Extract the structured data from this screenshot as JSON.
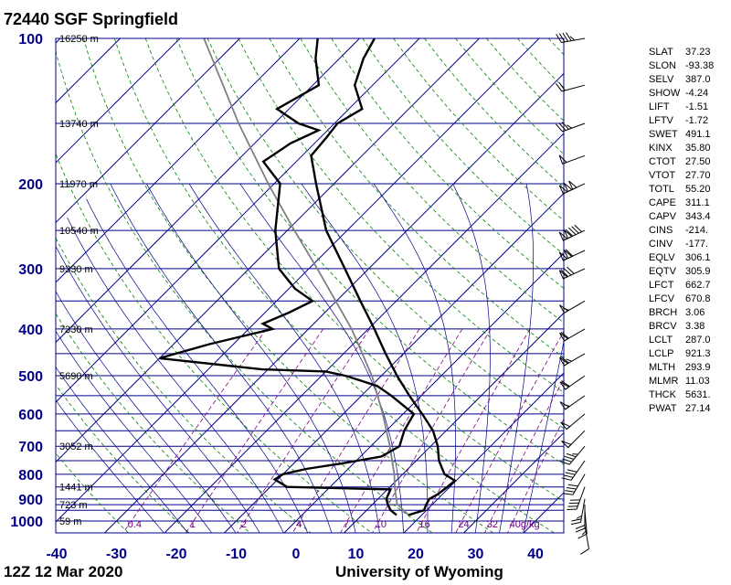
{
  "title": "72440 SGF Springfield",
  "footer": {
    "left": "12Z 12 Mar 2020",
    "right": "University of Wyoming"
  },
  "colors": {
    "pressure_label": "#00008b",
    "isobar": "#00008b",
    "isotherm": "#00008b",
    "dry_adiabat": "#008000",
    "moist_adiabat": "#00008b",
    "mixing_ratio": "#800080",
    "profile": "#000000",
    "parcel": "#808080"
  },
  "chart_data": {
    "type": "skewt",
    "pressure_labels": [
      "100",
      "200",
      "300",
      "400",
      "500",
      "600",
      "700",
      "800",
      "900",
      "1000"
    ],
    "pressure_levels": [
      100,
      150,
      200,
      250,
      300,
      350,
      400,
      450,
      500,
      550,
      600,
      650,
      700,
      750,
      800,
      850,
      900,
      925,
      950,
      1000
    ],
    "temperature_labels": [
      "-40",
      "-30",
      "-20",
      "-10",
      "0",
      "10",
      "20",
      "30",
      "40"
    ],
    "temperature_values": [
      -40,
      -30,
      -20,
      -10,
      0,
      10,
      20,
      30,
      40
    ],
    "height_labels": [
      {
        "p": 100,
        "text": "16250 m"
      },
      {
        "p": 150,
        "text": "13740 m"
      },
      {
        "p": 200,
        "text": "11970 m"
      },
      {
        "p": 250,
        "text": "10540 m"
      },
      {
        "p": 300,
        "text": "9330 m"
      },
      {
        "p": 400,
        "text": "7330 m"
      },
      {
        "p": 500,
        "text": "5690 m"
      },
      {
        "p": 700,
        "text": "3052 m"
      },
      {
        "p": 850,
        "text": "1441 m"
      },
      {
        "p": 925,
        "text": "723 m"
      },
      {
        "p": 1000,
        "text": "59 m"
      }
    ],
    "mixing_ratio_labels": [
      "0.4",
      "1",
      "2",
      "4",
      "7",
      "10",
      "16",
      "24",
      "32",
      "40g/kg"
    ],
    "mixing_ratio_values": [
      0.4,
      1,
      2,
      4,
      7,
      10,
      16,
      24,
      32,
      40
    ],
    "temperature_profile": [
      {
        "p": 972,
        "t": 17.8
      },
      {
        "p": 950,
        "t": 19.6
      },
      {
        "p": 925,
        "t": 19.0
      },
      {
        "p": 900,
        "t": 18.6
      },
      {
        "p": 880,
        "t": 19.2
      },
      {
        "p": 850,
        "t": 19.6
      },
      {
        "p": 825,
        "t": 19.8
      },
      {
        "p": 800,
        "t": 17.0
      },
      {
        "p": 750,
        "t": 13.8
      },
      {
        "p": 700,
        "t": 11.2
      },
      {
        "p": 650,
        "t": 7.8
      },
      {
        "p": 600,
        "t": 3.2
      },
      {
        "p": 550,
        "t": -2.0
      },
      {
        "p": 500,
        "t": -7.4
      },
      {
        "p": 450,
        "t": -13.0
      },
      {
        "p": 400,
        "t": -19.0
      },
      {
        "p": 350,
        "t": -26.0
      },
      {
        "p": 300,
        "t": -34.0
      },
      {
        "p": 250,
        "t": -43.5
      },
      {
        "p": 200,
        "t": -53.0
      },
      {
        "p": 175,
        "t": -58.5
      },
      {
        "p": 160,
        "t": -59.0
      },
      {
        "p": 150,
        "t": -59.5
      },
      {
        "p": 140,
        "t": -57.8
      },
      {
        "p": 125,
        "t": -63.0
      },
      {
        "p": 110,
        "t": -66.0
      },
      {
        "p": 100,
        "t": -67.5
      }
    ],
    "dewpoint_profile": [
      {
        "p": 972,
        "t": 15.8
      },
      {
        "p": 950,
        "t": 14.0
      },
      {
        "p": 925,
        "t": 12.6
      },
      {
        "p": 900,
        "t": 11.4
      },
      {
        "p": 860,
        "t": 10.5
      },
      {
        "p": 850,
        "t": -7.2
      },
      {
        "p": 820,
        "t": -10.5
      },
      {
        "p": 800,
        "t": -10.0
      },
      {
        "p": 780,
        "t": -7.0
      },
      {
        "p": 760,
        "t": -2.0
      },
      {
        "p": 735,
        "t": 3.5
      },
      {
        "p": 700,
        "t": 4.8
      },
      {
        "p": 650,
        "t": 3.0
      },
      {
        "p": 600,
        "t": 1.8
      },
      {
        "p": 550,
        "t": -5.0
      },
      {
        "p": 525,
        "t": -9.0
      },
      {
        "p": 500,
        "t": -16.0
      },
      {
        "p": 490,
        "t": -20.0
      },
      {
        "p": 485,
        "t": -31.0
      },
      {
        "p": 460,
        "t": -50.0
      },
      {
        "p": 430,
        "t": -44.0
      },
      {
        "p": 400,
        "t": -36.0
      },
      {
        "p": 390,
        "t": -38.5
      },
      {
        "p": 370,
        "t": -36.0
      },
      {
        "p": 350,
        "t": -34.0
      },
      {
        "p": 330,
        "t": -39.0
      },
      {
        "p": 300,
        "t": -45.0
      },
      {
        "p": 250,
        "t": -52.0
      },
      {
        "p": 200,
        "t": -59.0
      },
      {
        "p": 180,
        "t": -65.5
      },
      {
        "p": 165,
        "t": -64.0
      },
      {
        "p": 155,
        "t": -61.5
      },
      {
        "p": 150,
        "t": -66.0
      },
      {
        "p": 140,
        "t": -72.0
      },
      {
        "p": 125,
        "t": -69.0
      },
      {
        "p": 110,
        "t": -74.0
      },
      {
        "p": 100,
        "t": -77.0
      }
    ],
    "parcel_profile": [
      {
        "p": 972,
        "t": 17.8
      },
      {
        "p": 921.3,
        "t": 14.0
      },
      {
        "p": 850,
        "t": 10.8
      },
      {
        "p": 800,
        "t": 8.6
      },
      {
        "p": 700,
        "t": 3.2
      },
      {
        "p": 600,
        "t": -3.4
      },
      {
        "p": 500,
        "t": -11.6
      },
      {
        "p": 400,
        "t": -22.8
      },
      {
        "p": 300,
        "t": -38.6
      },
      {
        "p": 250,
        "t": -48.8
      },
      {
        "p": 200,
        "t": -61.0
      },
      {
        "p": 150,
        "t": -76.0
      },
      {
        "p": 100,
        "t": -96.0
      }
    ],
    "wind_barbs": [
      {
        "p": 100,
        "dir": 260,
        "kt": 45
      },
      {
        "p": 125,
        "dir": 255,
        "kt": 20
      },
      {
        "p": 150,
        "dir": 250,
        "kt": 35
      },
      {
        "p": 175,
        "dir": 250,
        "kt": 50
      },
      {
        "p": 200,
        "dir": 245,
        "kt": 150
      },
      {
        "p": 250,
        "dir": 245,
        "kt": 140
      },
      {
        "p": 275,
        "dir": 245,
        "kt": 110
      },
      {
        "p": 300,
        "dir": 245,
        "kt": 80
      },
      {
        "p": 350,
        "dir": 240,
        "kt": 55
      },
      {
        "p": 400,
        "dir": 240,
        "kt": 60
      },
      {
        "p": 450,
        "dir": 240,
        "kt": 65
      },
      {
        "p": 500,
        "dir": 235,
        "kt": 60
      },
      {
        "p": 550,
        "dir": 235,
        "kt": 55
      },
      {
        "p": 600,
        "dir": 230,
        "kt": 50
      },
      {
        "p": 650,
        "dir": 225,
        "kt": 50
      },
      {
        "p": 700,
        "dir": 220,
        "kt": 45
      },
      {
        "p": 750,
        "dir": 215,
        "kt": 40
      },
      {
        "p": 800,
        "dir": 210,
        "kt": 40
      },
      {
        "p": 850,
        "dir": 200,
        "kt": 40
      },
      {
        "p": 900,
        "dir": 190,
        "kt": 25
      },
      {
        "p": 925,
        "dir": 180,
        "kt": 20
      },
      {
        "p": 950,
        "dir": 175,
        "kt": 15
      },
      {
        "p": 1000,
        "dir": 170,
        "kt": 10
      }
    ]
  },
  "indices": [
    {
      "key": "SLAT",
      "value": "37.23"
    },
    {
      "key": "SLON",
      "value": "-93.38"
    },
    {
      "key": "SELV",
      "value": "387.0"
    },
    {
      "key": "SHOW",
      "value": "-4.24"
    },
    {
      "key": "LIFT",
      "value": "-1.51"
    },
    {
      "key": "LFTV",
      "value": "-1.72"
    },
    {
      "key": "SWET",
      "value": "491.1"
    },
    {
      "key": "KINX",
      "value": "35.80"
    },
    {
      "key": "CTOT",
      "value": "27.50"
    },
    {
      "key": "VTOT",
      "value": "27.70"
    },
    {
      "key": "TOTL",
      "value": "55.20"
    },
    {
      "key": "CAPE",
      "value": "311.1"
    },
    {
      "key": "CAPV",
      "value": "343.4"
    },
    {
      "key": "CINS",
      "value": "-214."
    },
    {
      "key": "CINV",
      "value": "-177."
    },
    {
      "key": "EQLV",
      "value": "306.1"
    },
    {
      "key": "EQTV",
      "value": "305.9"
    },
    {
      "key": "LFCT",
      "value": "662.7"
    },
    {
      "key": "LFCV",
      "value": "670.8"
    },
    {
      "key": "BRCH",
      "value": "3.06"
    },
    {
      "key": "BRCV",
      "value": "3.38"
    },
    {
      "key": "LCLT",
      "value": "287.0"
    },
    {
      "key": "LCLP",
      "value": "921.3"
    },
    {
      "key": "MLTH",
      "value": "293.9"
    },
    {
      "key": "MLMR",
      "value": "11.03"
    },
    {
      "key": "THCK",
      "value": "5631."
    },
    {
      "key": "PWAT",
      "value": "27.14"
    }
  ]
}
